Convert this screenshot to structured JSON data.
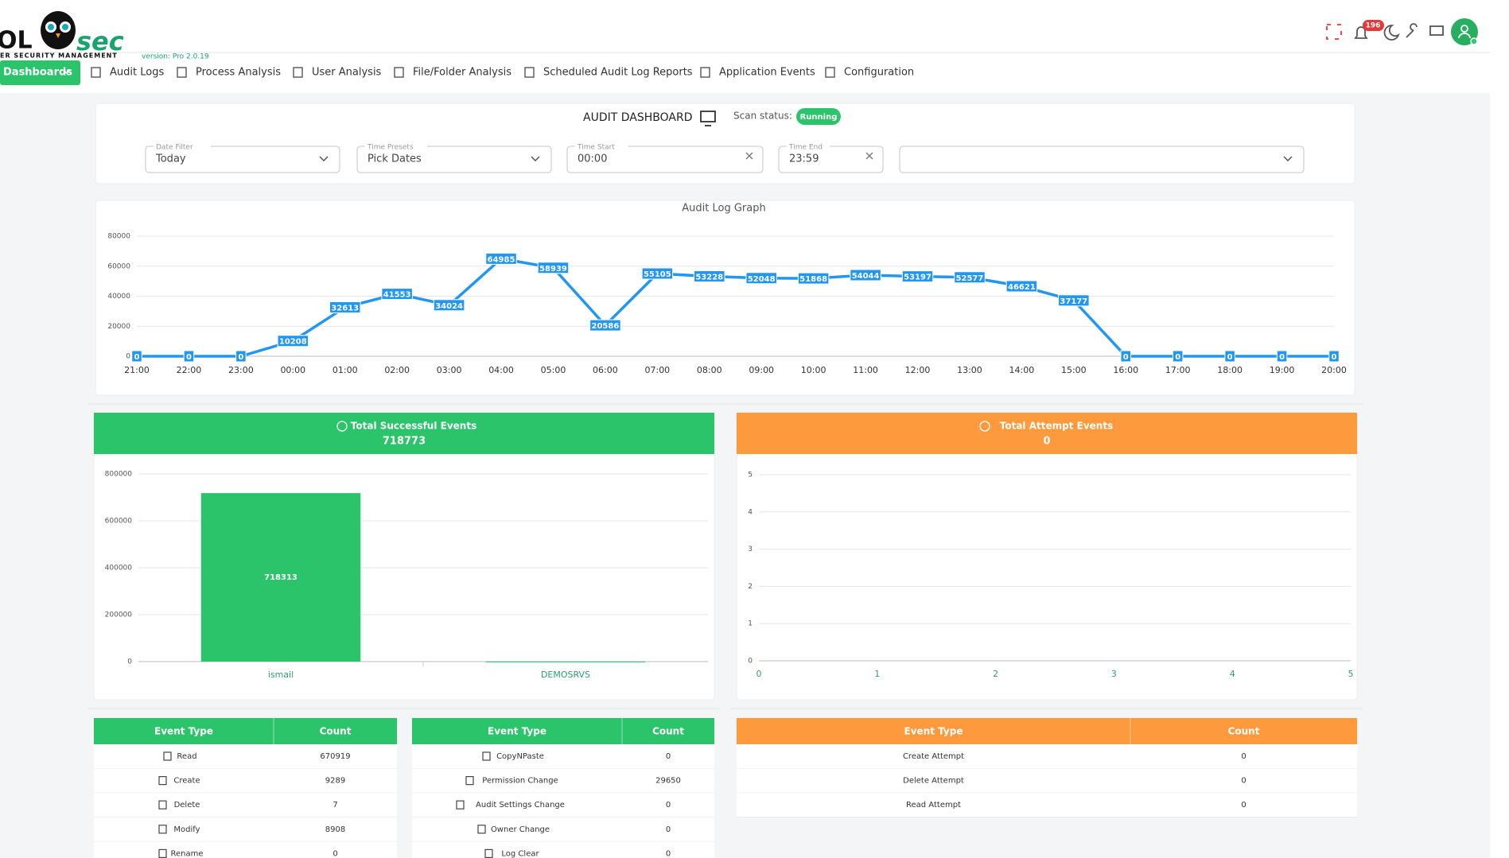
{
  "header": {
    "logo_left": "OL",
    "logo_right": "sec",
    "tagline": "ER SECURITY MANAGEMENT",
    "version": "version: Pro 2.0.19",
    "notification_count": "196"
  },
  "nav": {
    "items": [
      "Dashboards",
      "Audit Logs",
      "Process Analysis",
      "User Analysis",
      "File/Folder Analysis",
      "Scheduled Audit Log Reports",
      "Application Events",
      "Configuration"
    ]
  },
  "dashboard": {
    "title": "AUDIT DASHBOARD",
    "scan_status_label": "Scan status:",
    "scan_status": "Running"
  },
  "filters": [
    {
      "label": "Date Filter",
      "value": "Today"
    },
    {
      "label": "Time Presets",
      "value": "Pick Dates"
    },
    {
      "label": "Time Start",
      "value": "00:00"
    },
    {
      "label": "Time End",
      "value": "23:59"
    }
  ],
  "chart_data": [
    {
      "type": "line",
      "title": "Audit Log Graph",
      "categories": [
        "21:00",
        "22:00",
        "23:00",
        "00:00",
        "01:00",
        "02:00",
        "03:00",
        "04:00",
        "05:00",
        "06:00",
        "07:00",
        "08:00",
        "09:00",
        "10:00",
        "11:00",
        "12:00",
        "13:00",
        "14:00",
        "15:00",
        "16:00",
        "17:00",
        "18:00",
        "19:00",
        "20:00"
      ],
      "values": [
        0,
        0,
        0,
        10208,
        32613,
        41553,
        34024,
        64985,
        58939,
        20586,
        55105,
        53228,
        52048,
        51868,
        54044,
        53197,
        52577,
        46621,
        37177,
        0,
        0,
        0,
        0,
        0
      ],
      "color": "#2196f3",
      "ylim": [
        0,
        80000
      ],
      "yticks": [
        0,
        20000,
        40000,
        60000,
        80000
      ],
      "grid": true
    },
    {
      "type": "bar",
      "title": "Total Successful Events",
      "subtitle": 718773,
      "header_color": "#2bc46a",
      "categories": [
        "ismail",
        "DEMOSRVS"
      ],
      "values": [
        718313,
        460
      ],
      "color": "#2bc46a",
      "ylim": [
        0,
        800000
      ],
      "yticks": [
        0,
        200000,
        400000,
        600000,
        800000
      ],
      "grid": true
    },
    {
      "type": "scatter",
      "title": "Total Attempt Events",
      "subtitle": 0,
      "header_color": "#fd9a3e",
      "x": [],
      "values": [],
      "xlim": [
        0,
        5
      ],
      "ylim": [
        0,
        5
      ],
      "xticks": [
        0,
        1,
        2,
        3,
        4,
        5
      ],
      "yticks": [
        0,
        1,
        2,
        3,
        4,
        5
      ],
      "grid": true
    }
  ],
  "tables": [
    {
      "columns": [
        "Event Type",
        "Count"
      ],
      "rows": [
        [
          "Read",
          670919
        ],
        [
          "Create",
          9289
        ],
        [
          "Delete",
          7
        ],
        [
          "Modify",
          8908
        ],
        [
          "Rename",
          0
        ]
      ]
    },
    {
      "columns": [
        "Event Type",
        "Count"
      ],
      "rows": [
        [
          "CopyNPaste",
          0
        ],
        [
          "Permission Change",
          29650
        ],
        [
          "Audit Settings Change",
          0
        ],
        [
          "Owner Change",
          0
        ],
        [
          "Log Clear",
          0
        ]
      ]
    },
    {
      "columns": [
        "Event Type",
        "Count"
      ],
      "rows": [
        [
          "Create Attempt",
          0
        ],
        [
          "Delete Attempt",
          0
        ],
        [
          "Read Attempt",
          0
        ]
      ]
    }
  ]
}
